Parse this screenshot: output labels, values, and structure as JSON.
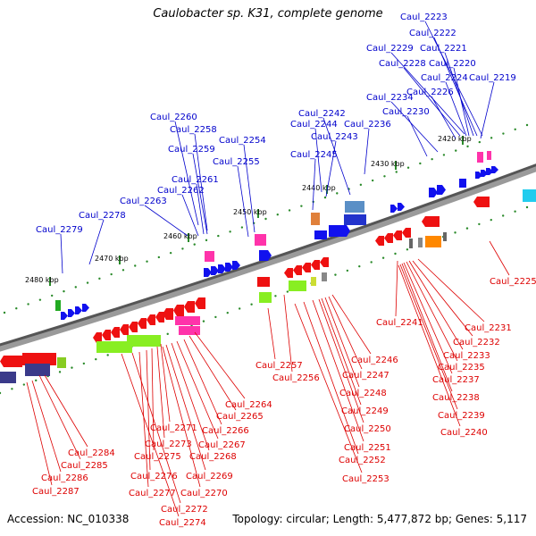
{
  "title": "Caulobacter sp. K31, complete genome",
  "footer": {
    "accession": "Accession: NC_010338",
    "summary": "Topology: circular; Length: 5,477,872 bp; Genes: 5,117"
  },
  "colors": {
    "top_label": "#0000cc",
    "bottom_label": "#dd0000",
    "backbone": "#555555",
    "tick": "#2a8a2a"
  },
  "kbp_labels": [
    "2420 kbp",
    "2430 kbp",
    "2440 kbp",
    "2450 kbp",
    "2460 kbp",
    "2470 kbp",
    "2480 kbp"
  ],
  "top_genes": [
    "Caul_2223",
    "Caul_2222",
    "Caul_2221",
    "Caul_2229",
    "Caul_2220",
    "Caul_2228",
    "Caul_2224",
    "Caul_2219",
    "Caul_2226",
    "Caul_2234",
    "Caul_2230",
    "Caul_2242",
    "Caul_2260",
    "Caul_2244",
    "Caul_2236",
    "Caul_2258",
    "Caul_2243",
    "Caul_2254",
    "Caul_2259",
    "Caul_2245",
    "Caul_2255",
    "Caul_2261",
    "Caul_2262",
    "Caul_2263",
    "Caul_2278",
    "Caul_2279"
  ],
  "bottom_genes": [
    "Caul_2225",
    "Caul_2241",
    "Caul_2231",
    "Caul_2232",
    "Caul_2233",
    "Caul_2235",
    "Caul_2237",
    "Caul_2238",
    "Caul_2239",
    "Caul_2240",
    "Caul_2246",
    "Caul_2257",
    "Caul_2247",
    "Caul_2256",
    "Caul_2248",
    "Caul_2249",
    "Caul_2264",
    "Caul_2250",
    "Caul_2265",
    "Caul_2271",
    "Caul_2266",
    "Caul_2251",
    "Caul_2273",
    "Caul_2267",
    "Caul_2252",
    "Caul_2284",
    "Caul_2275",
    "Caul_2268",
    "Caul_2285",
    "Caul_2253",
    "Caul_2269",
    "Caul_2276",
    "Caul_2286",
    "Caul_2270",
    "Caul_2277",
    "Caul_2287",
    "Caul_2272",
    "Caul_2274"
  ]
}
